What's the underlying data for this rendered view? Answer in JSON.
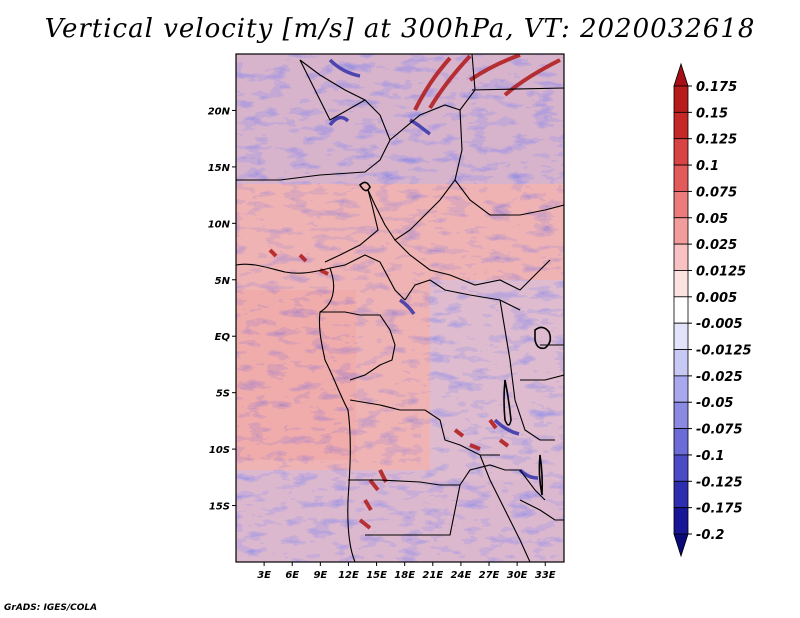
{
  "title": "Vertical velocity [m/s] at 300hPa, VT: 2020032618",
  "credit": "GrADS: IGES/COLA",
  "map": {
    "lon_range": [
      0,
      35
    ],
    "lat_range": [
      -20,
      25
    ],
    "lat_ticks": [
      {
        "value": 20,
        "label": "20N"
      },
      {
        "value": 15,
        "label": "15N"
      },
      {
        "value": 10,
        "label": "10N"
      },
      {
        "value": 5,
        "label": "5N"
      },
      {
        "value": 0,
        "label": "EQ"
      },
      {
        "value": -5,
        "label": "5S"
      },
      {
        "value": -10,
        "label": "10S"
      },
      {
        "value": -15,
        "label": "15S"
      }
    ],
    "lon_ticks": [
      {
        "value": 3,
        "label": "3E"
      },
      {
        "value": 6,
        "label": "6E"
      },
      {
        "value": 9,
        "label": "9E"
      },
      {
        "value": 12,
        "label": "12E"
      },
      {
        "value": 15,
        "label": "15E"
      },
      {
        "value": 18,
        "label": "18E"
      },
      {
        "value": 21,
        "label": "21E"
      },
      {
        "value": 24,
        "label": "24E"
      },
      {
        "value": 27,
        "label": "27E"
      },
      {
        "value": 30,
        "label": "30E"
      },
      {
        "value": 33,
        "label": "33E"
      }
    ]
  },
  "colorbar": {
    "levels": [
      "0.175",
      "0.15",
      "0.125",
      "0.1",
      "0.075",
      "0.05",
      "0.025",
      "0.0125",
      "0.005",
      "-0.005",
      "-0.0125",
      "-0.025",
      "-0.05",
      "-0.075",
      "-0.1",
      "-0.125",
      "-0.175",
      "-0.2"
    ],
    "colors": [
      "#a50f15",
      "#b71c1c",
      "#c62828",
      "#d84343",
      "#e35a5a",
      "#ec7b7b",
      "#f29c9c",
      "#f8c2c2",
      "#fde2e2",
      "#ffffff",
      "#e3e3fb",
      "#c8c8f4",
      "#a8a8ee",
      "#8a8ae3",
      "#6c6cd8",
      "#4b4bc6",
      "#2d2daf",
      "#161696",
      "#0a0a78"
    ]
  }
}
